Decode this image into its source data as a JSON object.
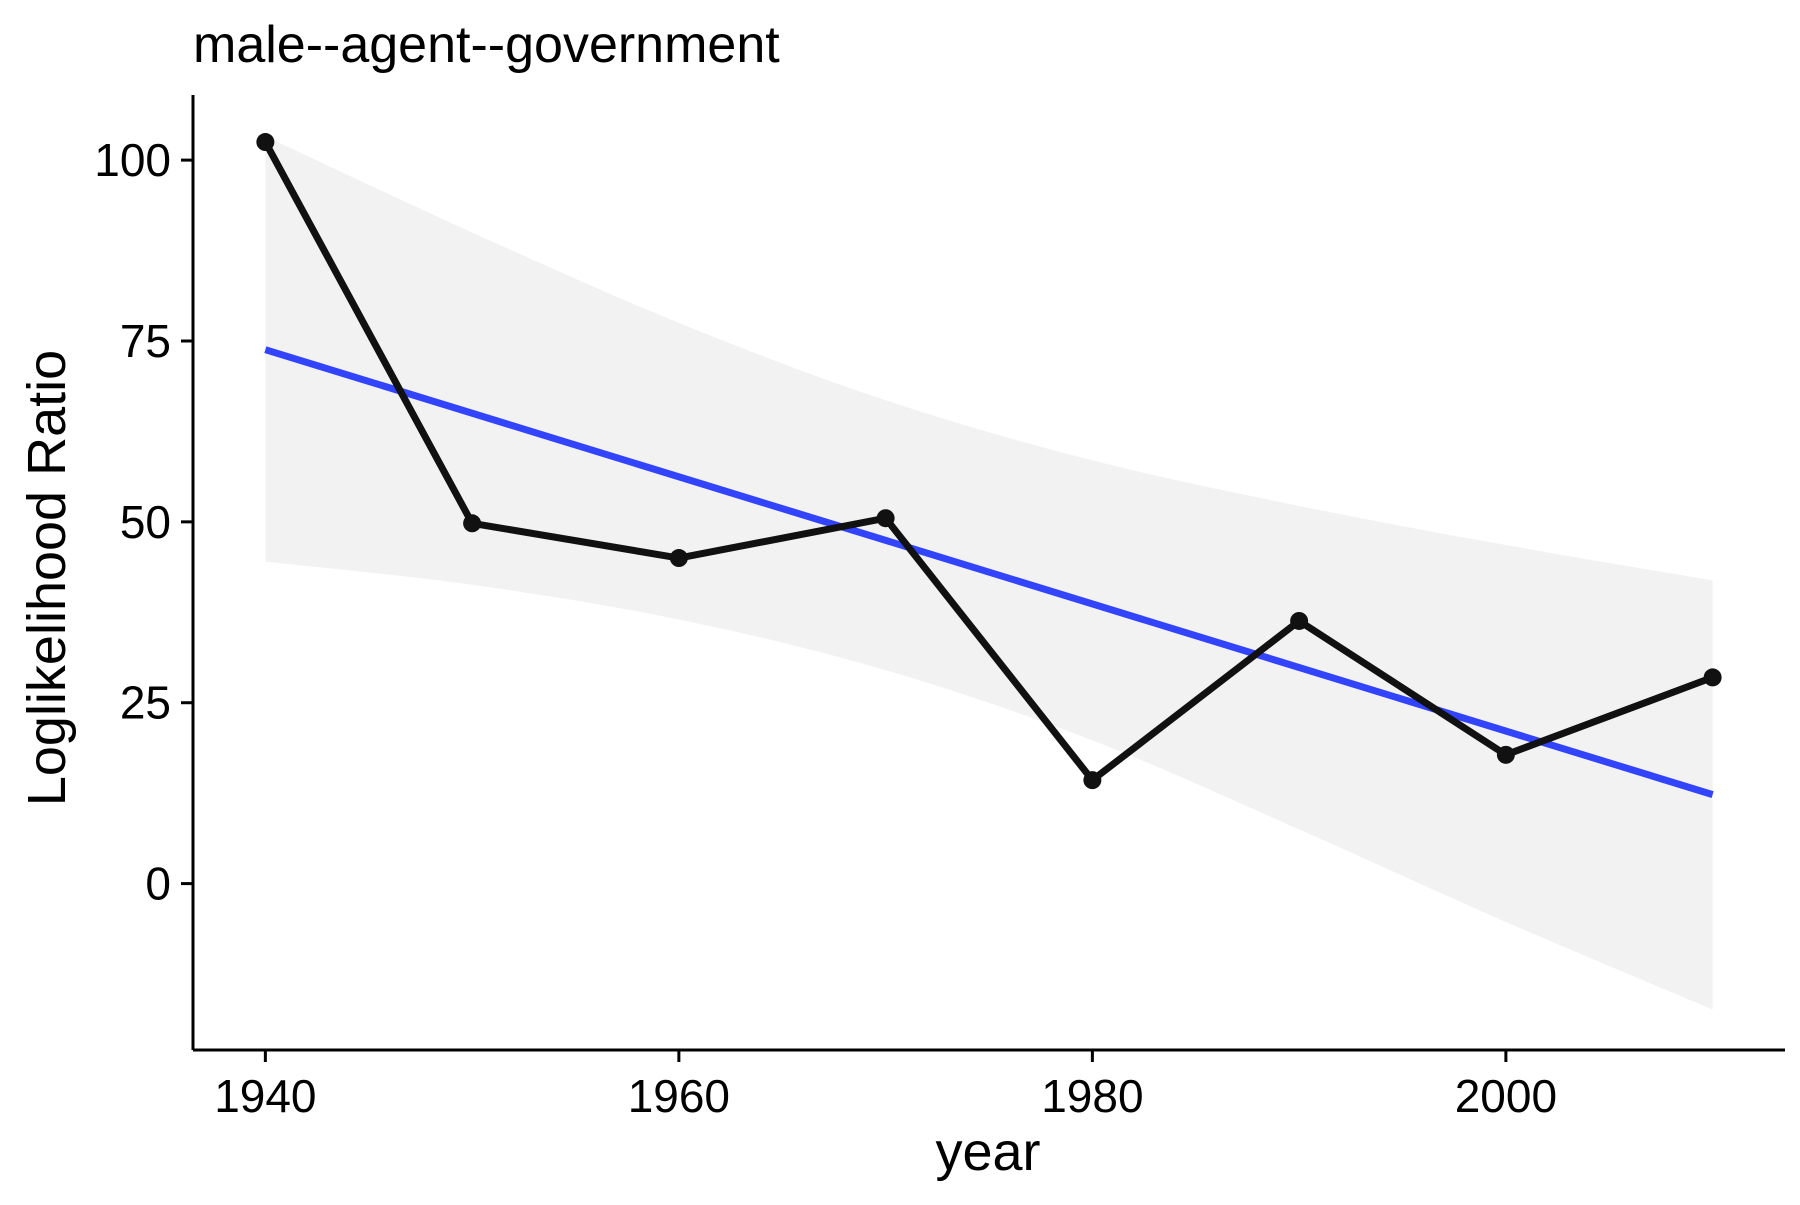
{
  "chart_data": {
    "type": "line",
    "title": "male--agent--government",
    "xlabel": "year",
    "ylabel": "Loglikelihood Ratio",
    "xlim": [
      1936.5,
      2013.5
    ],
    "ylim": [
      -23,
      109
    ],
    "x_ticks": [
      1940,
      1960,
      1980,
      2000
    ],
    "y_ticks": [
      0,
      25,
      50,
      75,
      100
    ],
    "x_tick_labels": [
      "1940",
      "1960",
      "1980",
      "2000"
    ],
    "y_tick_labels": [
      "0",
      "25",
      "50",
      "75",
      "100"
    ],
    "grid": false,
    "legend": "none",
    "series": [
      {
        "x": [
          1940,
          1950,
          1960,
          1970,
          1980,
          1990,
          2000,
          2010
        ],
        "values": [
          102.5,
          49.8,
          45.0,
          50.5,
          14.3,
          36.3,
          17.8,
          28.5
        ],
        "color": "#111111",
        "style": "line-with-points"
      }
    ],
    "trend": {
      "method": "linear fit",
      "x": [
        1940,
        2010
      ],
      "values": [
        73.8,
        12.3
      ],
      "color": "#3344ff"
    },
    "confidence_band": {
      "x": [
        1940,
        1950,
        1960,
        1970,
        1980,
        1990,
        2000,
        2010
      ],
      "upper": [
        103.3,
        90.0,
        77.5,
        66.8,
        58.5,
        52.2,
        46.8,
        41.9
      ],
      "lower": [
        44.5,
        41.3,
        36.5,
        29.5,
        19.8,
        7.5,
        -5.3,
        -17.4
      ],
      "color": "#f2f2f2"
    }
  }
}
